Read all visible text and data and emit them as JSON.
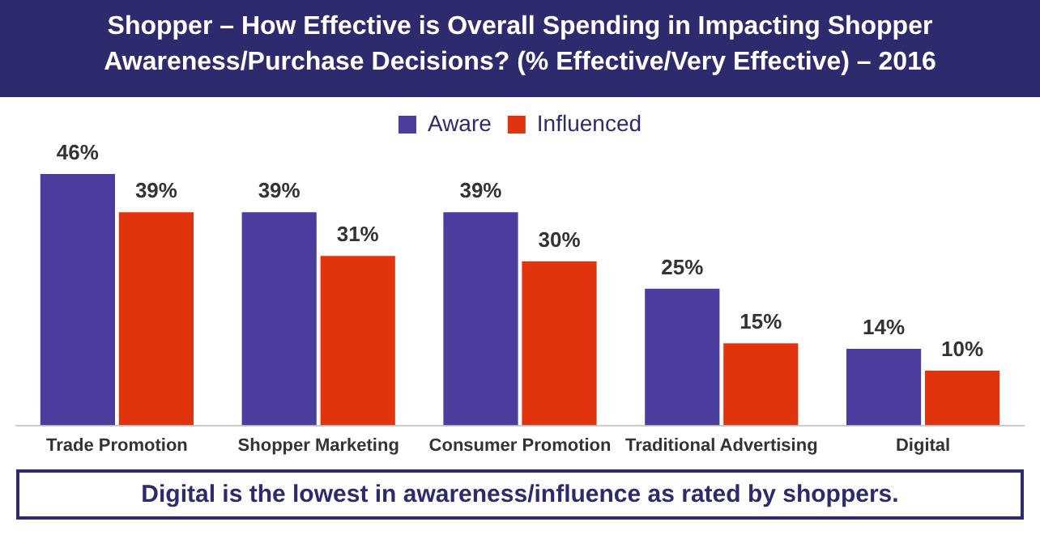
{
  "chart_data": {
    "type": "bar",
    "title": "Shopper – How Effective is Overall Spending in Impacting Shopper Awareness/Purchase Decisions? (% Effective/Very Effective) – 2016",
    "categories": [
      "Trade Promotion",
      "Shopper Marketing",
      "Consumer Promotion",
      "Traditional Advertising",
      "Digital"
    ],
    "series": [
      {
        "name": "Aware",
        "color": "#4a3d9e",
        "values": [
          46,
          39,
          39,
          25,
          14
        ],
        "value_labels": [
          "46%",
          "39%",
          "39%",
          "25%",
          "14%"
        ]
      },
      {
        "name": "Influenced",
        "color": "#e0330e",
        "values": [
          39,
          31,
          30,
          15,
          10
        ],
        "value_labels": [
          "39%",
          "31%",
          "30%",
          "15%",
          "10%"
        ]
      }
    ],
    "legend": "top",
    "grid": false,
    "annotations": [
      "Digital is the lowest in awareness/influence as rated by shoppers."
    ]
  }
}
